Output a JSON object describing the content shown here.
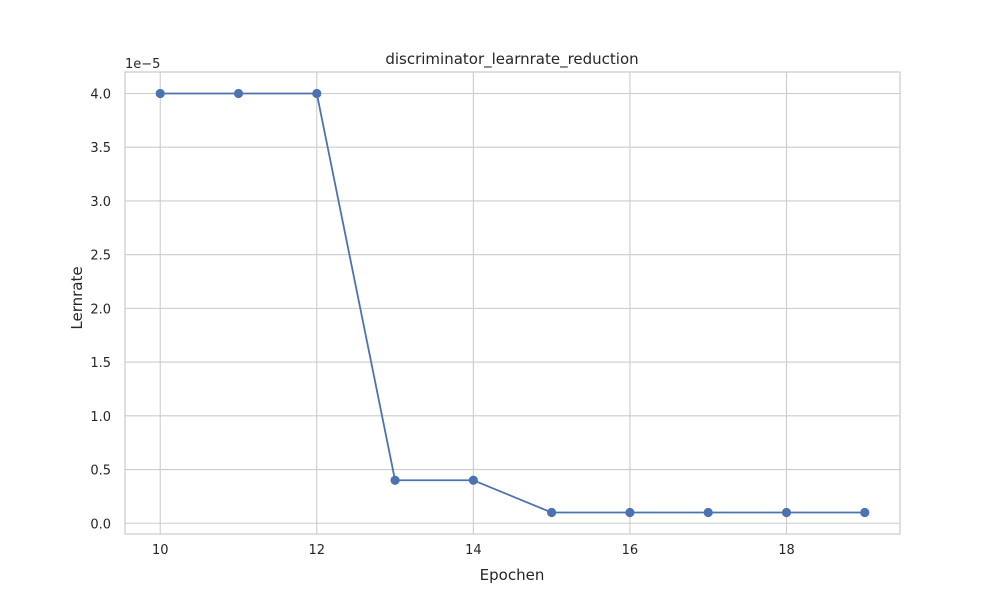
{
  "chart_data": {
    "type": "line",
    "title": "discriminator_learnrate_reduction",
    "xlabel": "Epochen",
    "ylabel": "Lernrate",
    "offset_label": "1e−5",
    "x": [
      10,
      11,
      12,
      13,
      14,
      15,
      16,
      17,
      18,
      19
    ],
    "series": [
      {
        "values": [
          4e-05,
          4e-05,
          4e-05,
          4e-06,
          4e-06,
          1e-06,
          1e-06,
          1e-06,
          1e-06,
          1e-06
        ],
        "color": "#4c72b0",
        "marker": "circle"
      }
    ],
    "xticks": [
      10,
      12,
      14,
      16,
      18
    ],
    "xtick_labels": [
      "10",
      "12",
      "14",
      "16",
      "18"
    ],
    "yticks": [
      0.0,
      0.5,
      1.0,
      1.5,
      2.0,
      2.5,
      3.0,
      3.5,
      4.0
    ],
    "ytick_labels": [
      "0.0",
      "0.5",
      "1.0",
      "1.5",
      "2.0",
      "2.5",
      "3.0",
      "3.5",
      "4.0"
    ],
    "xlim": [
      9.55,
      19.45
    ],
    "ylim": [
      -1e-06,
      4.2e-05
    ],
    "grid": true,
    "grid_color": "#cccccc",
    "axes_edge_color": "#cccccc"
  }
}
